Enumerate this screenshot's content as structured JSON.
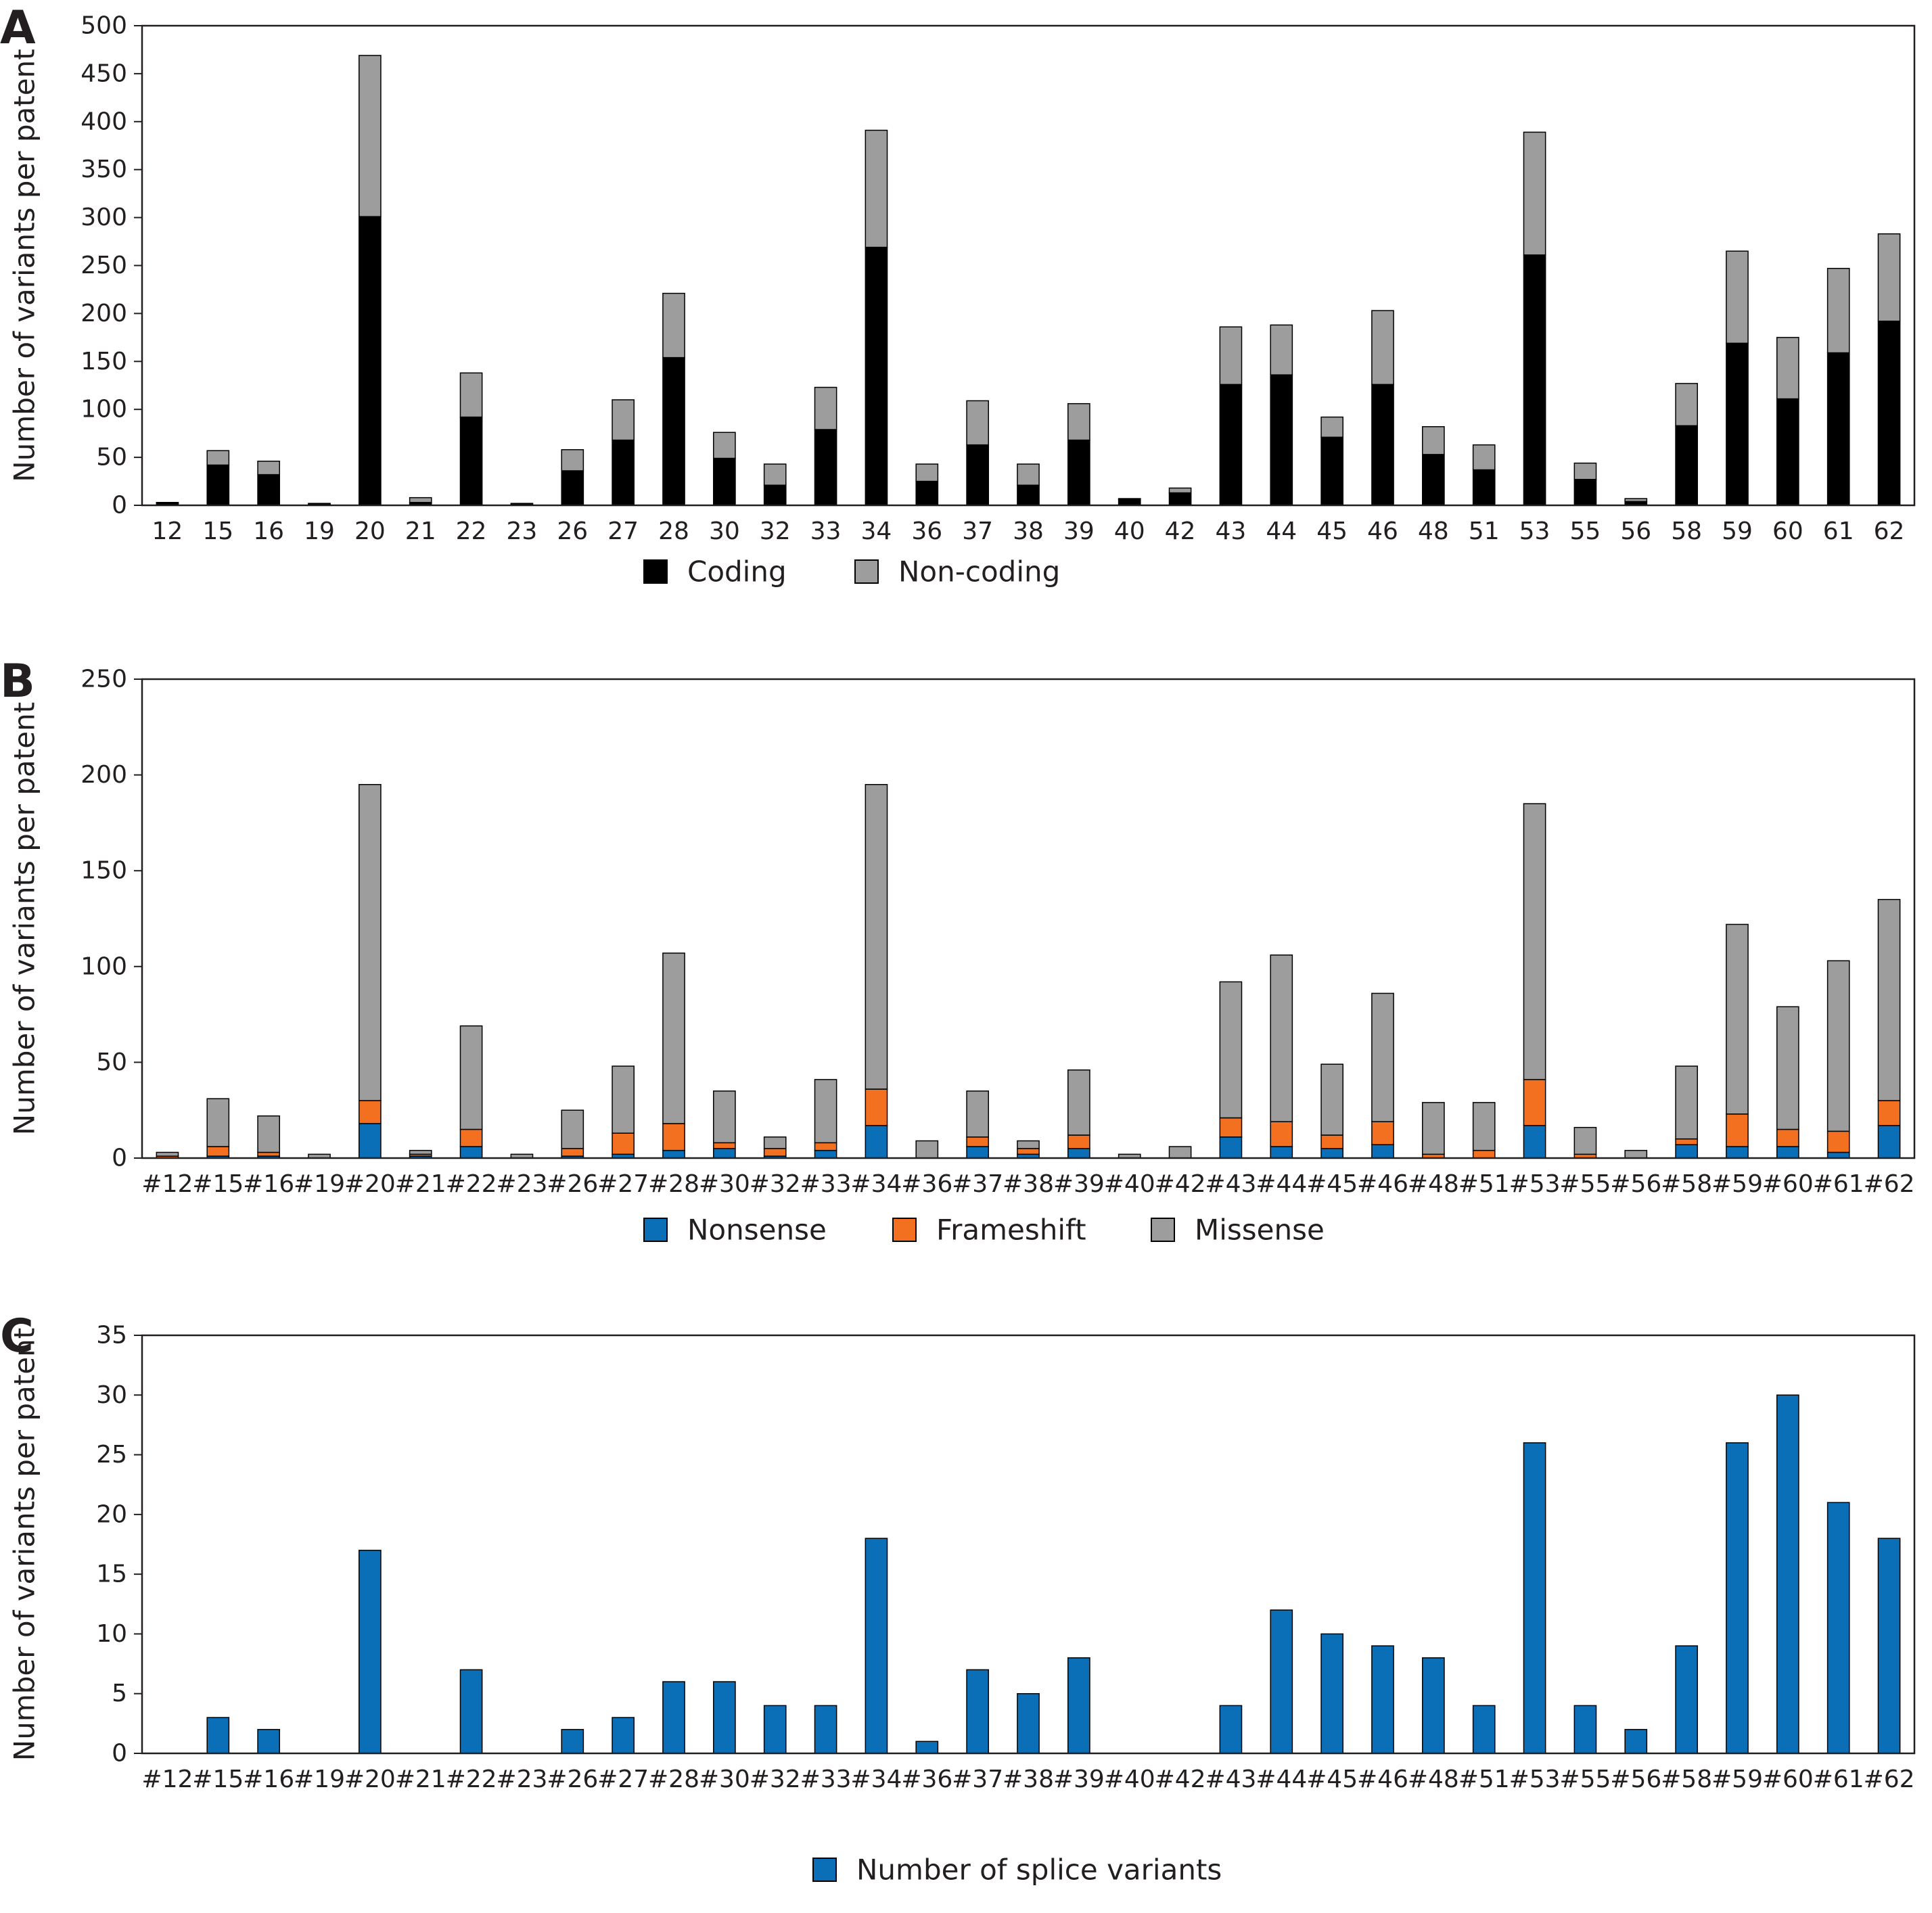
{
  "colors": {
    "coding": "#000000",
    "noncoding": "#9d9d9e",
    "nonsense": "#0b6fb8",
    "frameshift": "#f37021",
    "missense": "#9d9d9e",
    "splice": "#0b6fb8",
    "axis": "#231f20"
  },
  "chart_data": [
    {
      "panel": "A",
      "type": "bar",
      "stacked": true,
      "ylabel": "Number of variants per patent",
      "ylim": [
        0,
        500
      ],
      "yticks": [
        0,
        50,
        100,
        150,
        200,
        250,
        300,
        350,
        400,
        450,
        500
      ],
      "grid": false,
      "legend_position": "bottom-center",
      "categories": [
        "12",
        "15",
        "16",
        "19",
        "20",
        "21",
        "22",
        "23",
        "26",
        "27",
        "28",
        "30",
        "32",
        "33",
        "34",
        "36",
        "37",
        "38",
        "39",
        "40",
        "42",
        "43",
        "44",
        "45",
        "46",
        "48",
        "51",
        "53",
        "55",
        "56",
        "58",
        "59",
        "60",
        "61",
        "62"
      ],
      "series": [
        {
          "name": "Coding",
          "color_key": "coding",
          "values": [
            2,
            42,
            32,
            1,
            301,
            3,
            92,
            1,
            36,
            68,
            154,
            49,
            21,
            79,
            269,
            25,
            63,
            21,
            68,
            6,
            13,
            126,
            136,
            71,
            126,
            53,
            37,
            261,
            27,
            4,
            83,
            169,
            111,
            159,
            192
          ]
        },
        {
          "name": "Non-coding",
          "color_key": "noncoding",
          "values": [
            1,
            15,
            14,
            1,
            168,
            5,
            46,
            1,
            22,
            42,
            67,
            27,
            22,
            44,
            122,
            18,
            46,
            22,
            38,
            1,
            5,
            60,
            52,
            21,
            77,
            29,
            26,
            128,
            17,
            3,
            44,
            96,
            64,
            88,
            91
          ]
        }
      ]
    },
    {
      "panel": "B",
      "type": "bar",
      "stacked": true,
      "ylabel": "Number of variants per patent",
      "ylim": [
        0,
        250
      ],
      "yticks": [
        0,
        50,
        100,
        150,
        200,
        250
      ],
      "grid": false,
      "legend_position": "bottom-center",
      "categories": [
        "#12",
        "#15",
        "#16",
        "#19",
        "#20",
        "#21",
        "#22",
        "#23",
        "#26",
        "#27",
        "#28",
        "#30",
        "#32",
        "#33",
        "#34",
        "#36",
        "#37",
        "#38",
        "#39",
        "#40",
        "#42",
        "#43",
        "#44",
        "#45",
        "#46",
        "#48",
        "#51",
        "#53",
        "#55",
        "#56",
        "#58",
        "#59",
        "#60",
        "#61",
        "#62"
      ],
      "series": [
        {
          "name": "Nonsense",
          "color_key": "nonsense",
          "values": [
            0,
            1,
            1,
            0,
            18,
            1,
            6,
            0,
            1,
            2,
            4,
            5,
            1,
            4,
            17,
            0,
            6,
            2,
            5,
            0,
            0,
            11,
            6,
            5,
            7,
            0,
            0,
            17,
            0,
            0,
            7,
            6,
            6,
            3,
            17
          ]
        },
        {
          "name": "Frameshift",
          "color_key": "frameshift",
          "values": [
            1,
            5,
            2,
            0,
            12,
            1,
            9,
            0,
            4,
            11,
            14,
            3,
            4,
            4,
            19,
            0,
            5,
            3,
            7,
            0,
            0,
            10,
            13,
            7,
            12,
            2,
            4,
            24,
            2,
            0,
            3,
            17,
            9,
            11,
            13
          ]
        },
        {
          "name": "Missense",
          "color_key": "missense",
          "values": [
            2,
            25,
            19,
            2,
            165,
            2,
            54,
            2,
            20,
            35,
            89,
            27,
            6,
            33,
            159,
            9,
            24,
            4,
            34,
            2,
            6,
            71,
            87,
            37,
            67,
            27,
            25,
            144,
            14,
            4,
            38,
            99,
            64,
            89,
            105
          ]
        }
      ]
    },
    {
      "panel": "C",
      "type": "bar",
      "stacked": false,
      "ylabel": "Number of variants per patent",
      "ylim": [
        0,
        35
      ],
      "yticks": [
        0,
        5,
        10,
        15,
        20,
        25,
        30,
        35
      ],
      "grid": false,
      "legend_position": "bottom-center",
      "categories": [
        "#12",
        "#15",
        "#16",
        "#19",
        "#20",
        "#21",
        "#22",
        "#23",
        "#26",
        "#27",
        "#28",
        "#30",
        "#32",
        "#33",
        "#34",
        "#36",
        "#37",
        "#38",
        "#39",
        "#40",
        "#42",
        "#43",
        "#44",
        "#45",
        "#46",
        "#48",
        "#51",
        "#53",
        "#55",
        "#56",
        "#58",
        "#59",
        "#60",
        "#61",
        "#62"
      ],
      "series": [
        {
          "name": "Number of splice variants",
          "color_key": "splice",
          "values": [
            0,
            3,
            2,
            0,
            17,
            0,
            7,
            0,
            2,
            3,
            6,
            6,
            4,
            4,
            18,
            1,
            7,
            5,
            8,
            0,
            0,
            4,
            12,
            10,
            9,
            8,
            4,
            26,
            4,
            2,
            9,
            26,
            30,
            21,
            18
          ]
        }
      ]
    }
  ]
}
